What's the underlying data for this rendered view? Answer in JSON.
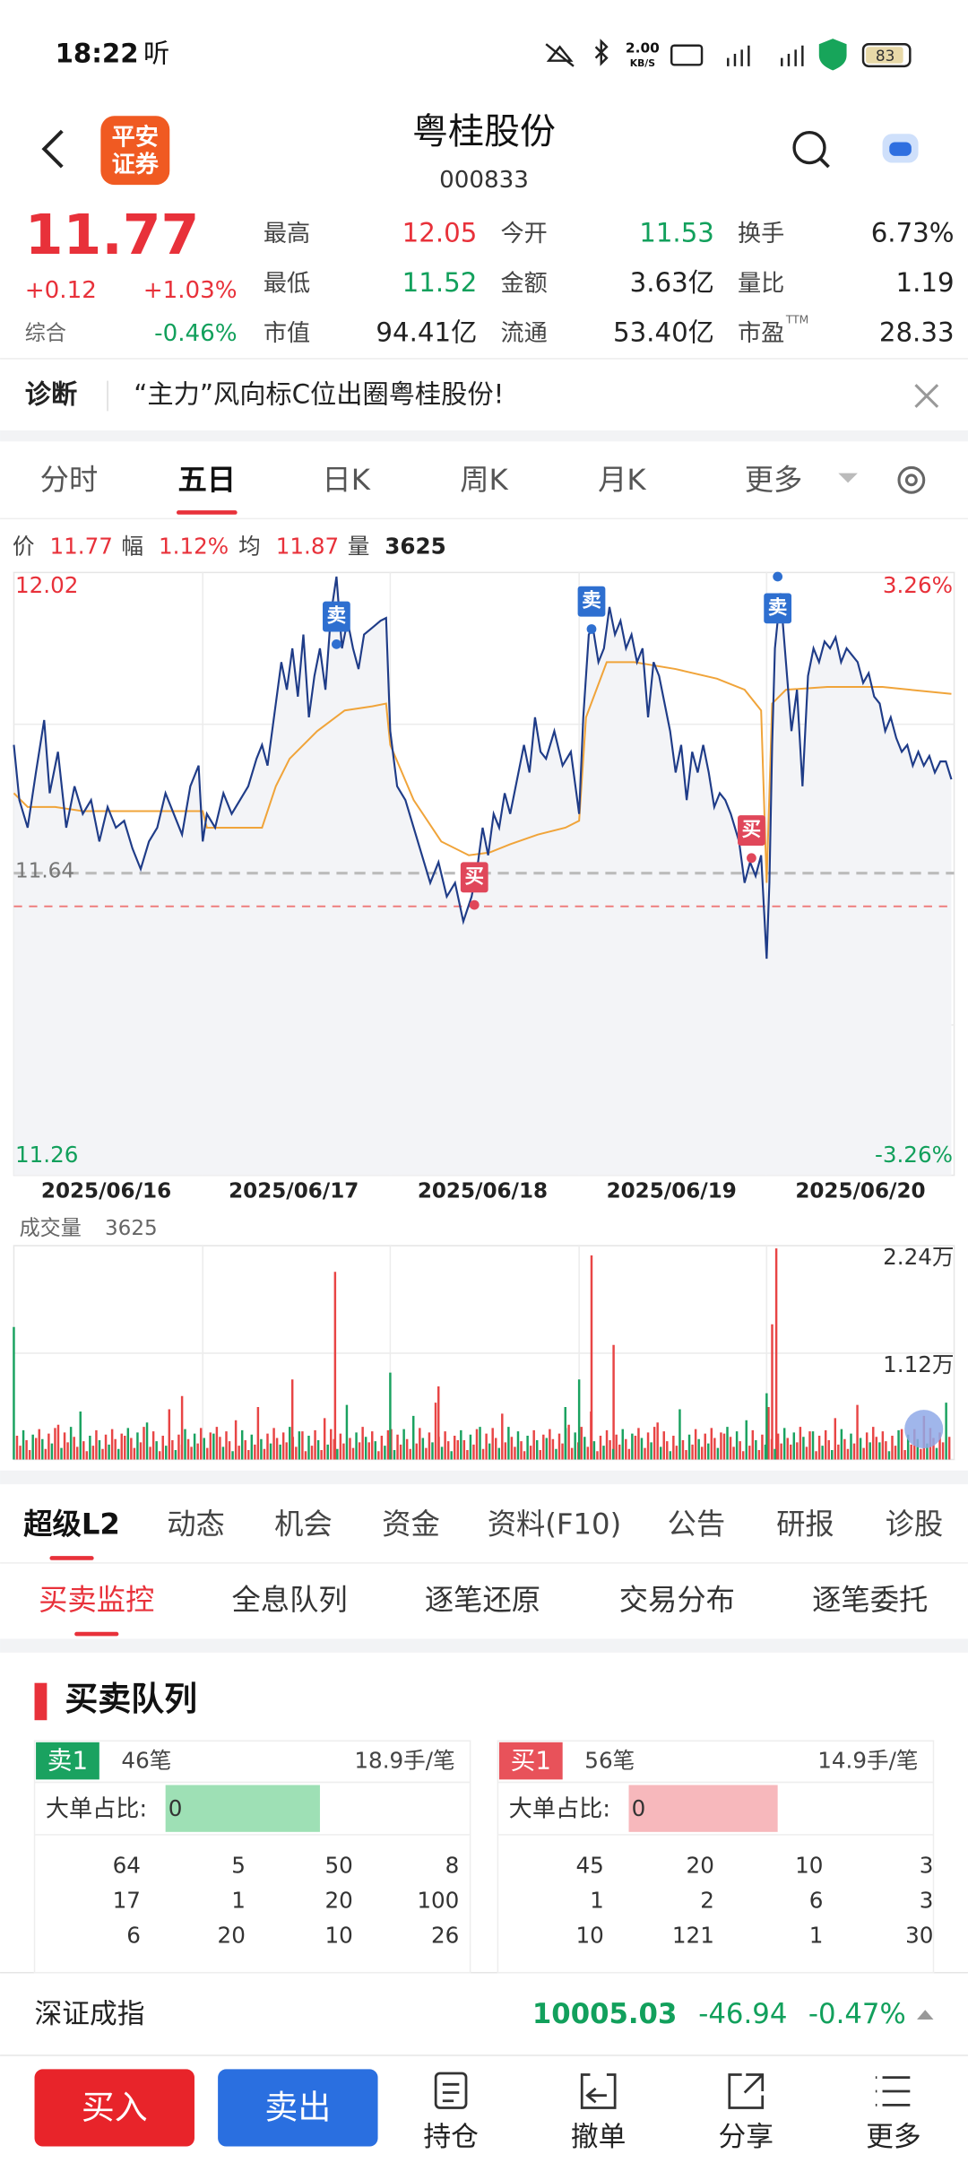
{
  "status_bar": {
    "time": "18:22",
    "app_indicator": "听",
    "network_speed": "2.00",
    "network_unit": "KB/S",
    "battery": "83"
  },
  "header": {
    "logo": [
      "平安",
      "证券"
    ],
    "title": "粤桂股份",
    "code": "000833"
  },
  "quote": {
    "price": "11.77",
    "change": "+0.12",
    "change_pct": "+1.03%",
    "composite_label": "综合",
    "composite": "-0.46%",
    "fields": [
      {
        "label": "最高",
        "value": "12.05",
        "color": "#e8313a"
      },
      {
        "label": "今开",
        "value": "11.53",
        "color": "#12a05c"
      },
      {
        "label": "换手",
        "value": "6.73%"
      },
      {
        "label": "最低",
        "value": "11.52",
        "color": "#12a05c"
      },
      {
        "label": "金额",
        "value": "3.63亿"
      },
      {
        "label": "量比",
        "value": "1.19"
      },
      {
        "label": "市值",
        "value": "94.41亿"
      },
      {
        "label": "流通",
        "value": "53.40亿"
      },
      {
        "label": "市盈",
        "sup": "TTM",
        "value": "28.33"
      }
    ]
  },
  "diagnosis": {
    "label": "诊断",
    "text": "“主力”风向标C位出圈粤桂股份!"
  },
  "chart_tabs": [
    "分时",
    "五日",
    "日K",
    "周K",
    "月K",
    "更多"
  ],
  "chart_info": [
    {
      "label": "价",
      "value": "11.77"
    },
    {
      "label": "幅",
      "value": "1.12%"
    },
    {
      "label": "均",
      "value": "11.87"
    },
    {
      "label": "量",
      "value": "3625"
    }
  ],
  "price_chart": {
    "max": "12.02",
    "min": "11.26",
    "max_pct": "3.26%",
    "min_pct": "-3.26%",
    "prev_close": "11.64",
    "dates": [
      "2025/06/16",
      "2025/06/17",
      "2025/06/18",
      "2025/06/19",
      "2025/06/20"
    ],
    "markers": [
      "卖",
      "卖",
      "卖",
      "买",
      "买"
    ]
  },
  "volume_chart": {
    "label": "成交量",
    "value": "3625",
    "ticks": [
      "2.24万",
      "1.12万"
    ]
  },
  "detail_tabs": [
    "超级L2",
    "动态",
    "机会",
    "资金",
    "资料(F10)",
    "公告",
    "研报",
    "诊股"
  ],
  "sub_tabs": [
    "买卖监控",
    "全息队列",
    "逐笔还原",
    "交易分布",
    "逐笔委托"
  ],
  "section_title": "买卖队列",
  "queues": [
    {
      "side": "卖1",
      "count": "46笔",
      "avg": "18.9手/笔",
      "big_order_label": "大单占比:",
      "big_order_value": "0",
      "rows": [
        [
          "64",
          "5",
          "50",
          "8"
        ],
        [
          "17",
          "1",
          "20",
          "100"
        ],
        [
          "6",
          "20",
          "10",
          "26"
        ]
      ]
    },
    {
      "side": "买1",
      "count": "56笔",
      "avg": "14.9手/笔",
      "big_order_label": "大单占比:",
      "big_order_value": "0",
      "rows": [
        [
          "45",
          "20",
          "10",
          "3"
        ],
        [
          "1",
          "2",
          "6",
          "3"
        ],
        [
          "10",
          "121",
          "1",
          "30"
        ]
      ]
    }
  ],
  "index_bar": {
    "name": "深证成指",
    "value": "10005.03",
    "change": "-46.94",
    "change_pct": "-0.47%"
  },
  "bottom_nav": {
    "buy": "买入",
    "sell": "卖出",
    "items": [
      "持仓",
      "撤单",
      "分享",
      "更多"
    ]
  }
}
